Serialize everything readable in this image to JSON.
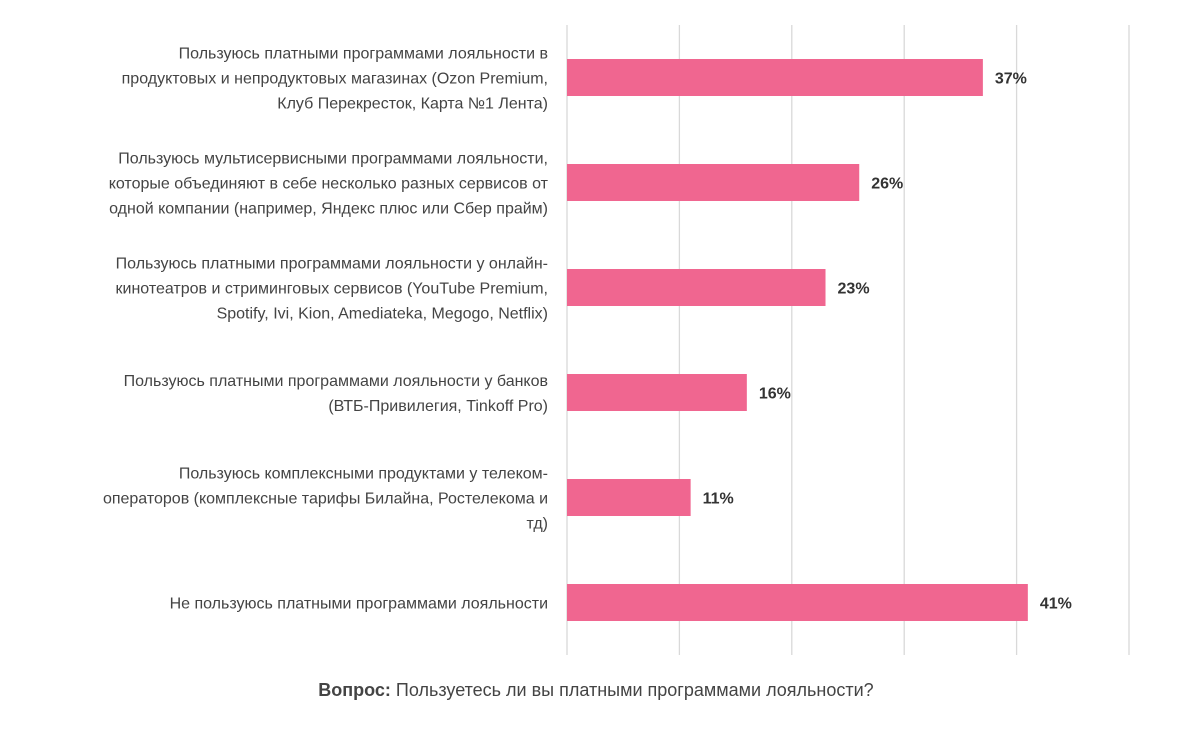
{
  "chart_data": {
    "type": "bar",
    "orientation": "horizontal",
    "categories": [
      [
        "Пользуюсь платными программами лояльности в",
        "продуктовых и непродуктовых магазинах  (Ozon Premium,",
        "Клуб Перекресток, Карта №1 Лента)"
      ],
      [
        "Пользуюсь мультисервисными программами лояльности,",
        "которые объединяют в себе несколько разных сервисов от",
        "одной компании (например, Яндекс плюс или Сбер прайм)"
      ],
      [
        "Пользуюсь платными программами лояльности у онлайн-",
        "кинотеатров и стриминговых сервисов (YouTube Premium,",
        "Spotify,  Ivi, Kion, Amediateka, Megogo, Netflix)"
      ],
      [
        "Пользуюсь платными программами лояльности у банков",
        "(ВТБ-Привилегия, Tinkoff Pro)"
      ],
      [
        "Пользуюсь комплексными продуктами у телеком-",
        "операторов (комплексные тарифы Билайна, Ростелекома и",
        "тд)"
      ],
      [
        "Не пользуюсь платными программами лояльности"
      ]
    ],
    "values": [
      37,
      26,
      23,
      16,
      11,
      41
    ],
    "value_labels": [
      "37%",
      "26%",
      "23%",
      "16%",
      "11%",
      "41%"
    ],
    "xlim": [
      0,
      50
    ],
    "grid": true,
    "bar_color": "#f06690",
    "grid_color": "#d9d9d9"
  },
  "caption": {
    "prefix": "Вопрос:",
    "text": " Пользуетесь ли вы платными программами лояльности?"
  }
}
